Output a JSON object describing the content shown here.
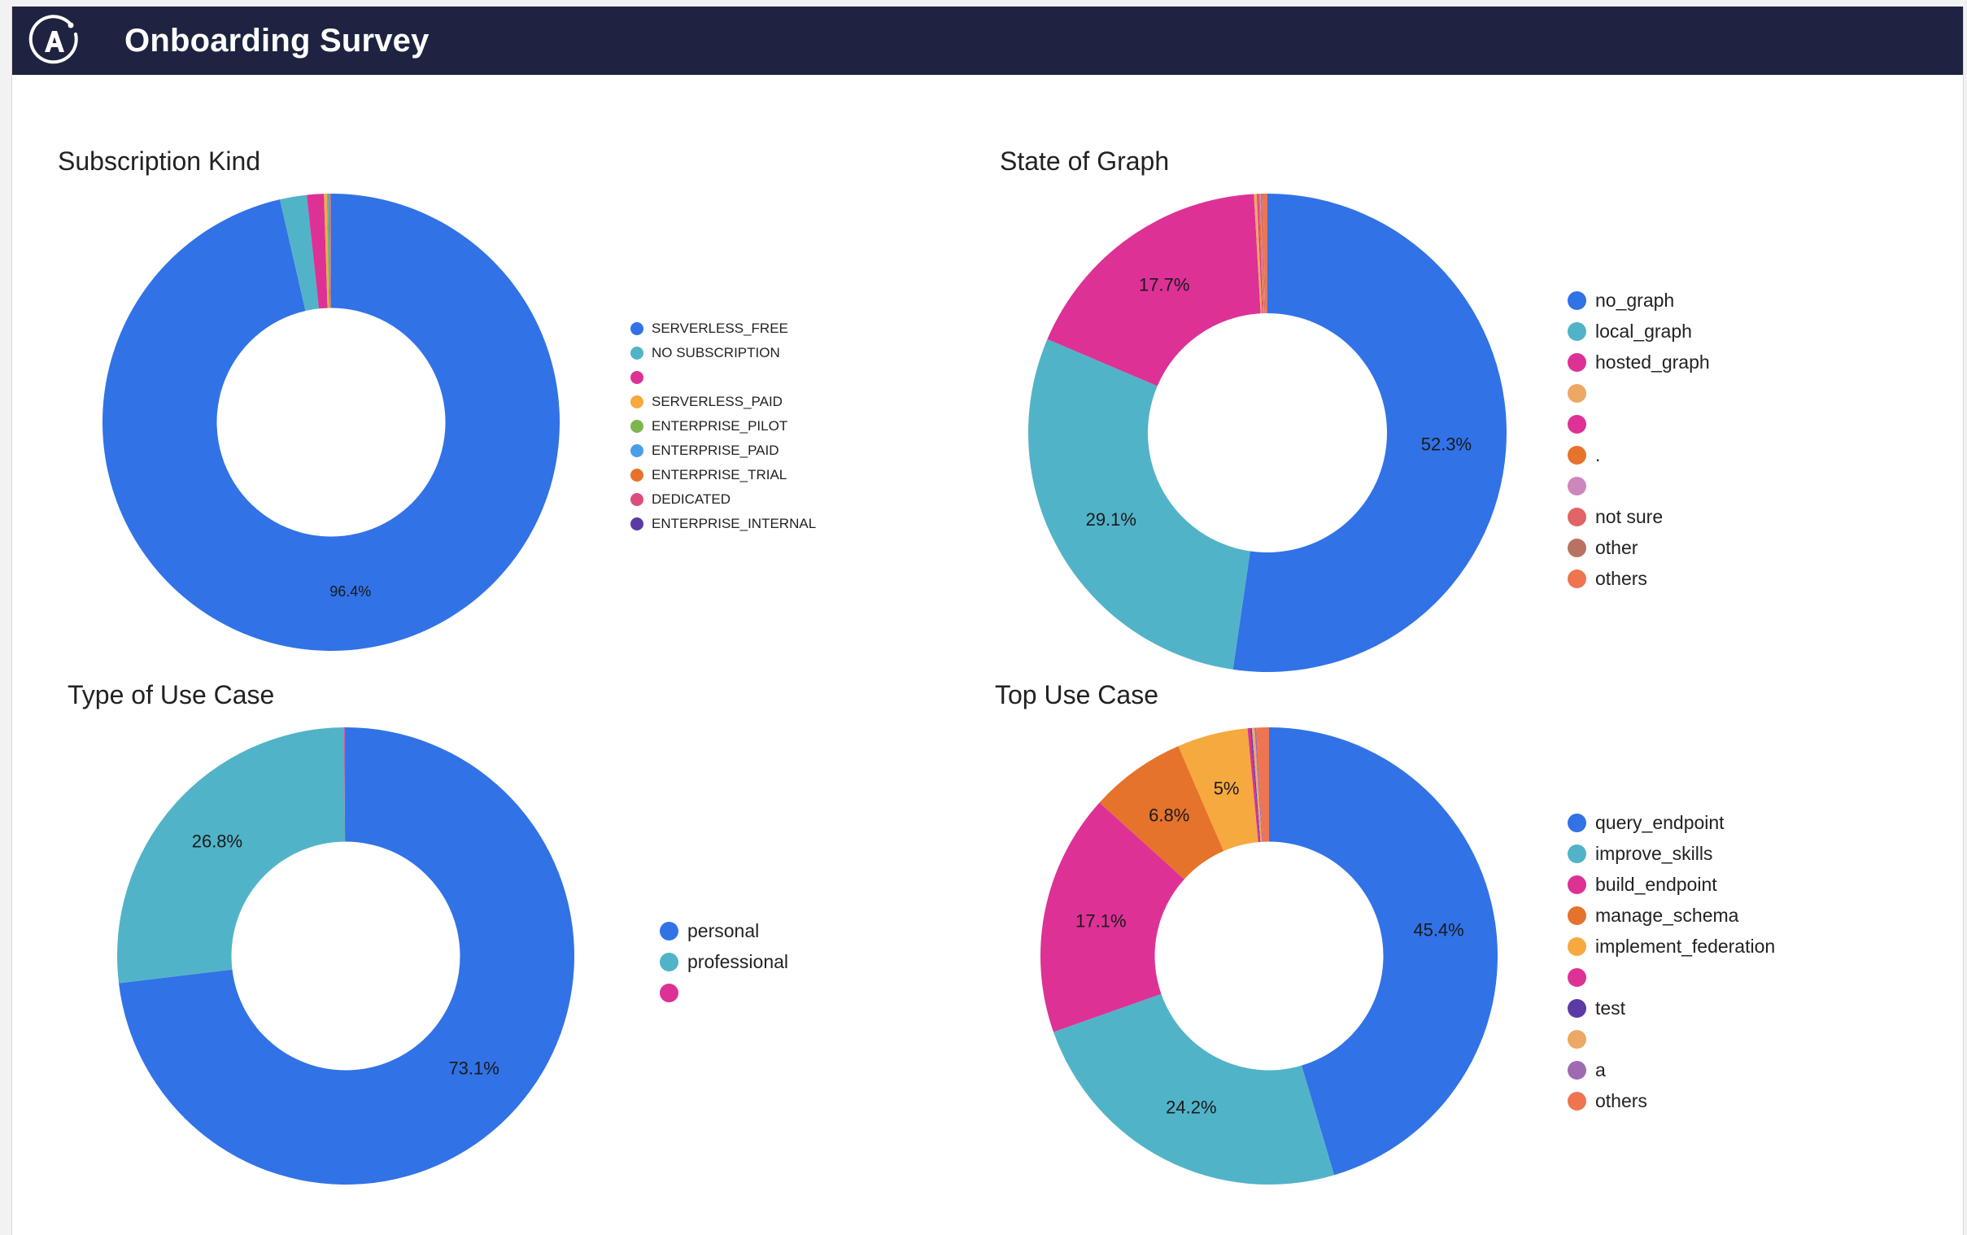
{
  "app": {
    "title": "Onboarding Survey"
  },
  "charts": [
    {
      "id": "subscription-kind",
      "title": "Subscription Kind",
      "legend_size": "small",
      "chart_data": {
        "type": "pie",
        "title": "Subscription Kind",
        "categories": [
          "SERVERLESS_FREE",
          "NO SUBSCRIPTION",
          "",
          "SERVERLESS_PAID",
          "ENTERPRISE_PILOT",
          "ENTERPRISE_PAID",
          "ENTERPRISE_TRIAL",
          "DEDICATED",
          "ENTERPRISE_INTERNAL"
        ],
        "values": [
          96.4,
          1.9,
          1.2,
          0.2,
          0.1,
          0.1,
          0.05,
          0.03,
          0.02
        ],
        "labels": [
          "96.4%",
          "",
          "",
          "",
          "",
          "",
          "",
          "",
          ""
        ],
        "colors": [
          "#3172e6",
          "#51b3c8",
          "#dd3196",
          "#f5a93e",
          "#7db64e",
          "#4a9de8",
          "#e5732c",
          "#dc4c7c",
          "#5b3aa6"
        ]
      }
    },
    {
      "id": "state-of-graph",
      "title": "State of Graph",
      "legend_size": "large",
      "chart_data": {
        "type": "pie",
        "title": "State of Graph",
        "categories": [
          "no_graph",
          "local_graph",
          "hosted_graph",
          "",
          "",
          ".",
          "",
          "not sure",
          "other",
          "others"
        ],
        "values": [
          52.3,
          29.1,
          17.7,
          0.2,
          0.1,
          0.1,
          0.05,
          0.1,
          0.05,
          0.3
        ],
        "labels": [
          "52.3%",
          "29.1%",
          "17.7%",
          "",
          "",
          "",
          "",
          "",
          "",
          ""
        ],
        "colors": [
          "#3172e6",
          "#51b3c8",
          "#dd3196",
          "#eda864",
          "#dd3196",
          "#e5732c",
          "#cc87bd",
          "#e06564",
          "#b87360",
          "#ee7550"
        ]
      }
    },
    {
      "id": "type-of-use-case",
      "title": "Type of Use Case",
      "legend_size": "large",
      "chart_data": {
        "type": "pie",
        "title": "Type of Use Case",
        "categories": [
          "personal",
          "professional",
          ""
        ],
        "values": [
          73.1,
          26.8,
          0.1
        ],
        "labels": [
          "73.1%",
          "26.8%",
          ""
        ],
        "colors": [
          "#3172e6",
          "#51b3c8",
          "#dd3196"
        ]
      }
    },
    {
      "id": "top-use-case",
      "title": "Top Use Case",
      "legend_size": "large",
      "chart_data": {
        "type": "pie",
        "title": "Top Use Case",
        "categories": [
          "query_endpoint",
          "improve_skills",
          "build_endpoint",
          "manage_schema",
          "implement_federation",
          "",
          "test",
          "",
          "a",
          "others"
        ],
        "values": [
          45.4,
          24.2,
          17.1,
          6.8,
          5.0,
          0.2,
          0.1,
          0.2,
          0.1,
          0.9
        ],
        "labels": [
          "45.4%",
          "24.2%",
          "17.1%",
          "6.8%",
          "5%",
          "",
          "",
          "",
          "",
          ""
        ],
        "colors": [
          "#3172e6",
          "#51b3c8",
          "#dd3196",
          "#e5732c",
          "#f5a93e",
          "#dd3196",
          "#5b3aa6",
          "#eda864",
          "#a06ab2",
          "#ee7550"
        ]
      }
    }
  ]
}
